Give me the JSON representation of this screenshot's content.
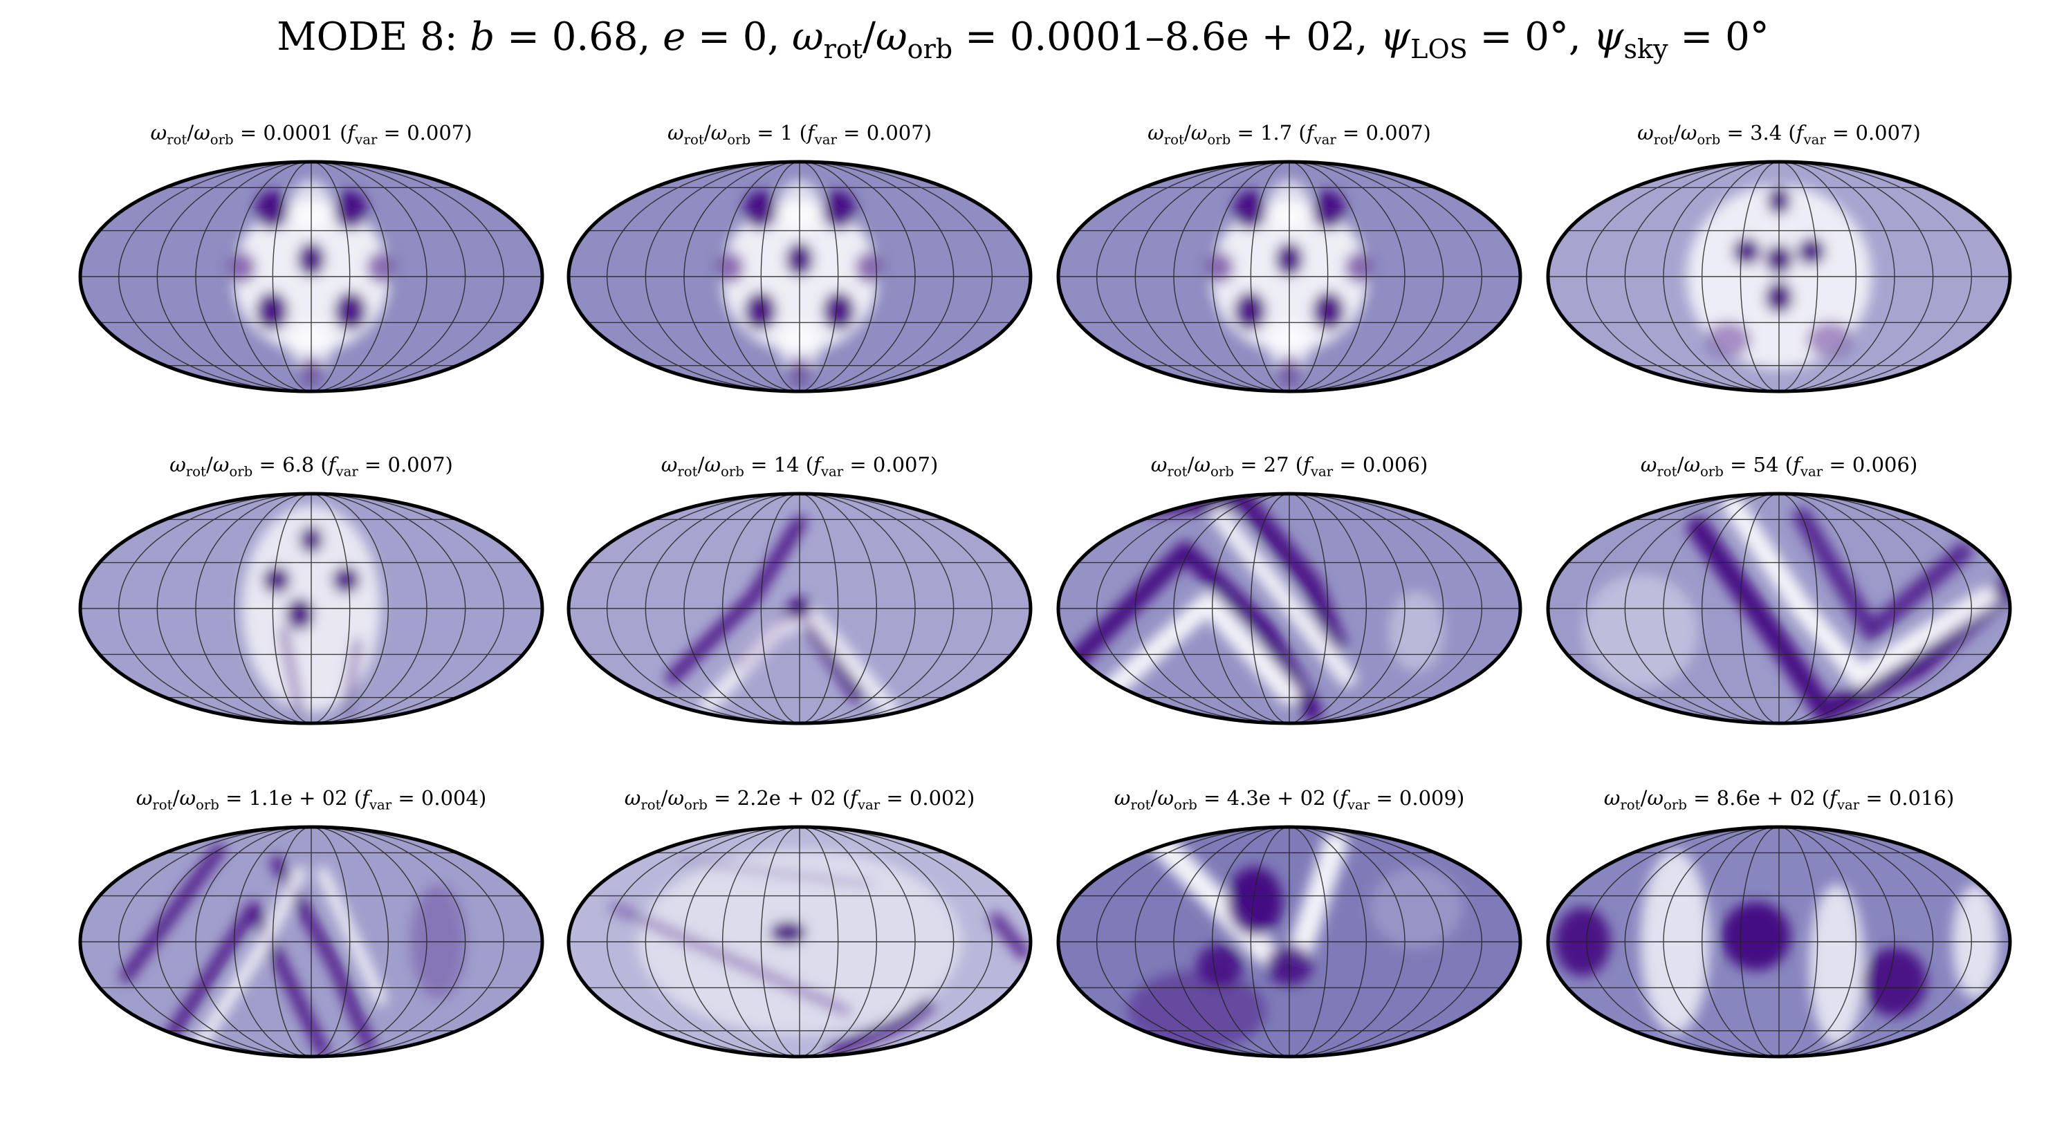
{
  "figure": {
    "title": {
      "mode": "MODE 8:",
      "b": "0.68",
      "e": "0",
      "omega_range": "0.0001–8.6e + 02",
      "psi_los": "0°",
      "psi_sky": "0°"
    },
    "projection": "Mollweide",
    "colormap": [
      "#3f007d",
      "#ffffff"
    ]
  },
  "panels": [
    {
      "ratio": "0.0001",
      "f_var": "0.007",
      "pattern": "dots-center"
    },
    {
      "ratio": "1",
      "f_var": "0.007",
      "pattern": "dots-center"
    },
    {
      "ratio": "1.7",
      "f_var": "0.007",
      "pattern": "dots-center"
    },
    {
      "ratio": "3.4",
      "f_var": "0.007",
      "pattern": "dots-center-faint"
    },
    {
      "ratio": "6.8",
      "f_var": "0.007",
      "pattern": "dots-stripes"
    },
    {
      "ratio": "14",
      "f_var": "0.007",
      "pattern": "chevron-small"
    },
    {
      "ratio": "27",
      "f_var": "0.006",
      "pattern": "chevron-large"
    },
    {
      "ratio": "54",
      "f_var": "0.006",
      "pattern": "wave-right"
    },
    {
      "ratio": "1.1e + 02",
      "f_var": "0.004",
      "pattern": "chevron-left"
    },
    {
      "ratio": "2.2e + 02",
      "f_var": "0.002",
      "pattern": "noisy-light"
    },
    {
      "ratio": "4.3e + 02",
      "f_var": "0.009",
      "pattern": "broad-dark"
    },
    {
      "ratio": "8.6e + 02",
      "f_var": "0.016",
      "pattern": "blobs"
    }
  ]
}
